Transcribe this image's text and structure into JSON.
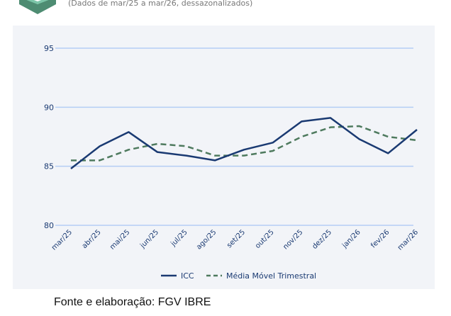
{
  "subtitle": "(Dados de mar/25 a mar/26, dessazonalizados)",
  "source": "Fonte e elaboração: FGV IBRE",
  "chart_data": {
    "type": "line",
    "categories": [
      "mar/25",
      "abr/25",
      "mai/25",
      "jun/25",
      "jul/25",
      "ago/25",
      "set/25",
      "out/25",
      "nov/25",
      "dez/25",
      "jan/26",
      "fev/26",
      "mar/26"
    ],
    "series": [
      {
        "name": "ICC",
        "color": "#1a3a72",
        "style": "solid",
        "values": [
          84.8,
          86.7,
          87.9,
          86.2,
          85.9,
          85.5,
          86.4,
          87.0,
          88.8,
          89.1,
          87.3,
          86.1,
          88.1
        ]
      },
      {
        "name": "Média Móvel Trimestral",
        "color": "#4e7a5e",
        "style": "dashed",
        "values": [
          85.5,
          85.5,
          86.4,
          86.9,
          86.7,
          85.9,
          85.9,
          86.3,
          87.5,
          88.3,
          88.4,
          87.5,
          87.2
        ]
      }
    ],
    "yticks": [
      80,
      85,
      90,
      95
    ],
    "ylim": [
      80,
      95
    ],
    "grid": true,
    "legend": "bottom"
  }
}
